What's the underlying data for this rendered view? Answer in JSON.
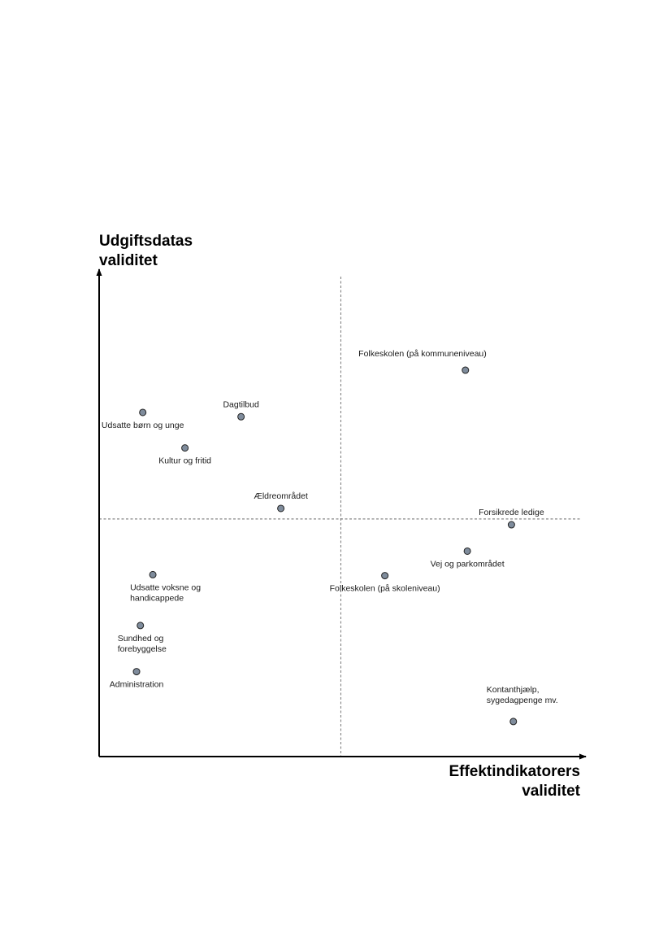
{
  "chart_data": {
    "type": "scatter",
    "xlabel": "Effektindikatorers\nvaliditet",
    "ylabel": "Udgiftsdatas\nvaliditet",
    "xlim": [
      0,
      100
    ],
    "ylim": [
      0,
      100
    ],
    "grid": false,
    "point_color": "#7f8c9c",
    "points": [
      {
        "label": "Folkeskolen  (på kommuneniveau)",
        "x": 76.4,
        "y": 80.5,
        "anchor": "end-above"
      },
      {
        "label": "Udsatte børn og unge",
        "x": 9.1,
        "y": 71.7,
        "anchor": "below"
      },
      {
        "label": "Dagtilbud",
        "x": 29.6,
        "y": 70.8,
        "anchor": "above"
      },
      {
        "label": "Kultur og fritid",
        "x": 17.9,
        "y": 64.3,
        "anchor": "below"
      },
      {
        "label": "Ældreområdet",
        "x": 37.9,
        "y": 51.7,
        "anchor": "above"
      },
      {
        "label": "Forsikrede ledige",
        "x": 86.0,
        "y": 48.3,
        "anchor": "above"
      },
      {
        "label": "Vej og parkområdet",
        "x": 76.8,
        "y": 42.8,
        "anchor": "below"
      },
      {
        "label": "Folkeskolen  (på skoleniveau)",
        "x": 59.6,
        "y": 37.7,
        "anchor": "below"
      },
      {
        "label": "Udsatte voksne og\nhandicappede",
        "x": 11.2,
        "y": 37.9,
        "anchor": "below"
      },
      {
        "label": "Sundhed og\nforebyggelse",
        "x": 8.6,
        "y": 27.3,
        "anchor": "below"
      },
      {
        "label": "Administration",
        "x": 7.8,
        "y": 17.7,
        "anchor": "below"
      },
      {
        "label": "Kontanthjælp,\nsygedagpenge mv.",
        "x": 86.4,
        "y": 7.3,
        "anchor": "above"
      }
    ],
    "dividers": {
      "x": 50.4,
      "y": 49.5
    }
  }
}
